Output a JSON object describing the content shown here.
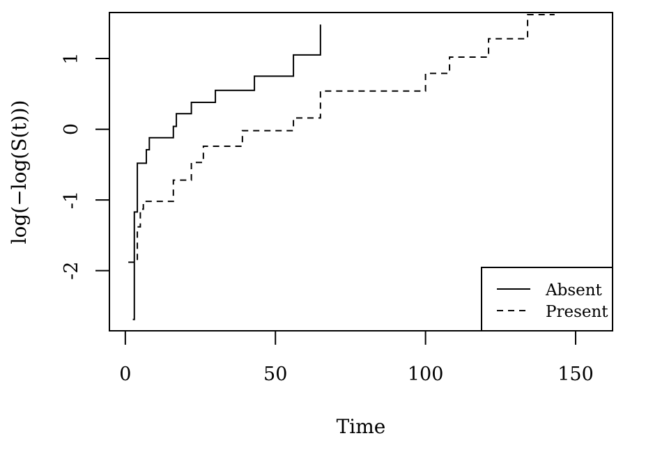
{
  "chart_data": {
    "type": "line",
    "title": "",
    "xlabel": "Time",
    "ylabel": "log(−log(S(t)))",
    "xlim": [
      -5.3,
      162.3
    ],
    "ylim": [
      -2.85,
      1.65
    ],
    "xticks": [
      0,
      50,
      100,
      150
    ],
    "xtick_labels": [
      "0",
      "50",
      "100",
      "150"
    ],
    "yticks": [
      -2,
      -1,
      0,
      1
    ],
    "ytick_labels": [
      "-2",
      "-1",
      "0",
      "1"
    ],
    "grid": false,
    "legend_position": "bottom-right",
    "series": [
      {
        "name": "Absent",
        "style": "solid",
        "color": "#000000",
        "x": [
          2.5,
          3,
          4,
          7,
          8,
          16,
          17,
          22,
          30,
          43,
          56,
          65
        ],
        "y": [
          -2.69,
          -1.17,
          -0.48,
          -0.29,
          -0.12,
          0.04,
          0.22,
          0.38,
          0.55,
          0.75,
          1.05,
          1.48
        ]
      },
      {
        "name": "Present",
        "style": "dashed",
        "color": "#000000",
        "x": [
          1,
          4,
          5,
          6,
          16,
          22,
          26,
          39,
          56,
          65,
          100,
          108,
          121,
          134,
          143
        ],
        "y": [
          -1.88,
          -1.38,
          -1.13,
          -1.02,
          -0.72,
          -0.47,
          -0.24,
          -0.02,
          0.16,
          0.54,
          0.79,
          1.02,
          1.28,
          1.62,
          1.62
        ]
      }
    ]
  }
}
